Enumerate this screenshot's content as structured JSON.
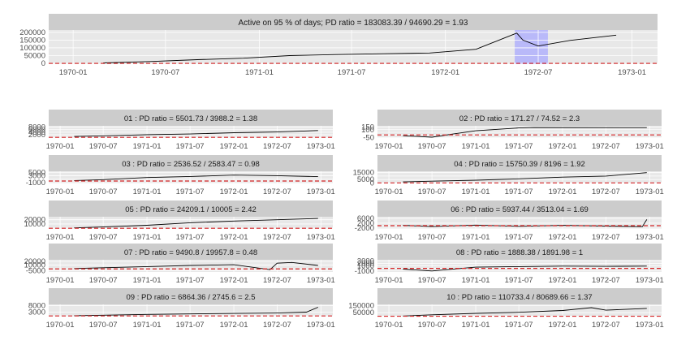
{
  "chart_data": [
    {
      "type": "line",
      "title": "Active on 95 % of days; PD ratio =  183083.39 / 94690.29 = 1.93",
      "x_ticks": [
        "1970-01",
        "1970-07",
        "1971-01",
        "1971-07",
        "1972-01",
        "1972-07",
        "1973-01"
      ],
      "y_ticks": [
        0,
        50000,
        100000,
        150000,
        200000
      ],
      "y_tick_labels": [
        "0",
        "50000",
        "100000",
        "150000",
        "200000"
      ],
      "ylim": [
        -5000,
        215000
      ],
      "reference_line": 0,
      "highlight_range": [
        "1972-05-16",
        "1972-07-20"
      ],
      "series": [
        {
          "x": [
            "1970-03-01",
            "1970-06-01",
            "1970-09-01",
            "1970-12-01",
            "1971-03-01",
            "1971-06-01",
            "1971-09-01",
            "1971-12-01",
            "1972-03-01",
            "1972-05-20",
            "1972-06-01",
            "1972-07-01",
            "1972-09-01",
            "1972-12-01"
          ],
          "y": [
            3000,
            12000,
            24000,
            33000,
            50000,
            57000,
            62000,
            67000,
            91000,
            195000,
            150000,
            112000,
            148000,
            182000
          ]
        }
      ]
    },
    {
      "type": "line",
      "title": "01 : PD ratio =  5501.73 / 3988.2 = 1.38",
      "x_ticks": [
        "1970-01",
        "1970-07",
        "1971-01",
        "1971-07",
        "1972-01",
        "1972-07",
        "1973-01"
      ],
      "y_ticks": [
        0,
        2000,
        4000,
        6000,
        8000
      ],
      "y_tick_labels": [
        "2000",
        "4000",
        "6000",
        "8000"
      ],
      "ylim": [
        -500,
        9000
      ],
      "reference_line": 0,
      "series": [
        {
          "x": [
            "1970-03-01",
            "1970-07-01",
            "1971-01-01",
            "1971-07-01",
            "1972-01-01",
            "1972-07-01",
            "1972-12-20"
          ],
          "y": [
            700,
            1200,
            2100,
            2600,
            3600,
            4200,
            5300
          ]
        }
      ]
    },
    {
      "type": "line",
      "title": "02 : PD ratio =  171.27 / 74.52 = 2.3",
      "x_ticks": [
        "1970-01",
        "1970-07",
        "1971-01",
        "1971-07",
        "1972-01",
        "1972-07",
        "1973-01"
      ],
      "y_ticks": [
        -50,
        0,
        50,
        100,
        150
      ],
      "y_tick_labels": [
        "-50",
        "100",
        "150"
      ],
      "ylim": [
        -60,
        175
      ],
      "reference_line": 0,
      "series": [
        {
          "x": [
            "1970-03-01",
            "1970-07-01",
            "1970-10-01",
            "1971-01-01",
            "1971-07-01",
            "1971-09-01",
            "1972-12-20"
          ],
          "y": [
            -15,
            -45,
            20,
            80,
            135,
            142,
            140
          ]
        }
      ]
    },
    {
      "type": "line",
      "title": "03 : PD ratio =  2536.52 / 2583.47 = 0.98",
      "x_ticks": [
        "1970-01",
        "1970-07",
        "1971-01",
        "1971-07",
        "1972-01",
        "1972-07",
        "1973-01"
      ],
      "y_ticks": [
        -1000,
        0,
        1000,
        3000,
        5000
      ],
      "y_tick_labels": [
        "-1000",
        "3000",
        "5000"
      ],
      "ylim": [
        -1400,
        5600
      ],
      "reference_line": 0,
      "series": [
        {
          "x": [
            "1970-03-01",
            "1970-07-01",
            "1971-01-01",
            "1971-07-01",
            "1972-01-01",
            "1972-07-01",
            "1972-12-20"
          ],
          "y": [
            300,
            800,
            2000,
            2600,
            3400,
            3100,
            2500
          ]
        }
      ]
    },
    {
      "type": "line",
      "title": "04 : PD ratio =  15750.39 / 8196 = 1.92",
      "x_ticks": [
        "1970-01",
        "1970-07",
        "1971-01",
        "1971-07",
        "1972-01",
        "1972-07",
        "1973-01"
      ],
      "y_ticks": [
        0,
        5000,
        10000,
        15000
      ],
      "y_tick_labels": [
        "0",
        "5000",
        "15000"
      ],
      "ylim": [
        -800,
        17000
      ],
      "reference_line": 0,
      "series": [
        {
          "x": [
            "1970-03-01",
            "1970-07-01",
            "1971-01-01",
            "1971-07-01",
            "1972-01-01",
            "1972-07-01",
            "1972-12-20"
          ],
          "y": [
            1500,
            2500,
            4000,
            6000,
            8500,
            10000,
            15000
          ]
        }
      ]
    },
    {
      "type": "line",
      "title": "05 : PD ratio =  24209.1 / 10005 = 2.42",
      "x_ticks": [
        "1970-01",
        "1970-07",
        "1971-01",
        "1971-07",
        "1972-01",
        "1972-07",
        "1973-01"
      ],
      "y_ticks": [
        0,
        10000,
        20000
      ],
      "y_tick_labels": [
        "10000",
        "20000"
      ],
      "ylim": [
        -1500,
        27000
      ],
      "reference_line": 0,
      "series": [
        {
          "x": [
            "1970-03-01",
            "1970-07-01",
            "1971-01-01",
            "1971-07-01",
            "1972-01-01",
            "1972-07-01",
            "1972-12-20"
          ],
          "y": [
            1000,
            3000,
            7000,
            13000,
            17000,
            20000,
            23000
          ]
        }
      ]
    },
    {
      "type": "line",
      "title": "06 : PD ratio =  5937.44 / 3513.04 = 1.69",
      "x_ticks": [
        "1970-01",
        "1970-07",
        "1971-01",
        "1971-07",
        "1972-01",
        "1972-07",
        "1973-01"
      ],
      "y_ticks": [
        -2000,
        0,
        2000,
        6000
      ],
      "y_tick_labels": [
        "-2000",
        "2000",
        "6000"
      ],
      "ylim": [
        -2600,
        7200
      ],
      "reference_line": 0,
      "series": [
        {
          "x": [
            "1970-03-01",
            "1970-07-01",
            "1971-01-01",
            "1971-07-01",
            "1972-01-01",
            "1972-07-01",
            "1972-12-01",
            "1972-12-20"
          ],
          "y": [
            300,
            -700,
            500,
            -500,
            300,
            -300,
            -800,
            5000
          ]
        }
      ]
    },
    {
      "type": "line",
      "title": "07 : PD ratio =  9490.8 / 19957.8 = 0.48",
      "x_ticks": [
        "1970-01",
        "1970-07",
        "1971-01",
        "1971-07",
        "1972-01",
        "1972-07",
        "1973-01"
      ],
      "y_ticks": [
        -5000,
        0,
        10000,
        20000
      ],
      "y_tick_labels": [
        "-5000",
        "10000",
        "20000"
      ],
      "ylim": [
        -8000,
        24000
      ],
      "reference_line": 0,
      "series": [
        {
          "x": [
            "1970-03-01",
            "1970-07-01",
            "1971-01-01",
            "1971-07-01",
            "1972-01-01",
            "1972-06-01",
            "1972-07-01",
            "1972-09-01",
            "1972-12-20"
          ],
          "y": [
            1000,
            3000,
            6000,
            9000,
            11000,
            -2000,
            15000,
            17000,
            9000
          ]
        }
      ]
    },
    {
      "type": "line",
      "title": "08 : PD ratio =  1888.38 / 1891.98 = 1",
      "x_ticks": [
        "1970-01",
        "1970-07",
        "1971-01",
        "1971-07",
        "1972-01",
        "1972-07",
        "1973-01"
      ],
      "y_ticks": [
        -1000,
        0,
        1000,
        2000,
        3000
      ],
      "y_tick_labels": [
        "-1000",
        "1000",
        "2000",
        "3000"
      ],
      "ylim": [
        -1400,
        3400
      ],
      "reference_line": 0,
      "series": [
        {
          "x": [
            "1970-03-01",
            "1970-07-01",
            "1971-01-01",
            "1971-07-01",
            "1972-01-01",
            "1972-07-01",
            "1972-12-20"
          ],
          "y": [
            -300,
            -1000,
            500,
            700,
            900,
            800,
            900
          ]
        }
      ]
    },
    {
      "type": "line",
      "title": "09 : PD ratio =  6864.36 / 2745.6 = 2.5",
      "x_ticks": [
        "1970-01",
        "1970-07",
        "1971-01",
        "1971-07",
        "1972-01",
        "1972-07",
        "1973-01"
      ],
      "y_ticks": [
        0,
        3000,
        8000
      ],
      "y_tick_labels": [
        "3000",
        "8000"
      ],
      "ylim": [
        -500,
        9000
      ],
      "reference_line": 0,
      "series": [
        {
          "x": [
            "1970-03-01",
            "1970-07-01",
            "1971-01-01",
            "1971-07-01",
            "1972-01-01",
            "1972-07-01",
            "1972-11-01",
            "1972-12-20"
          ],
          "y": [
            200,
            600,
            1200,
            1600,
            2000,
            2300,
            3000,
            6800
          ]
        }
      ]
    },
    {
      "type": "line",
      "title": "10 : PD ratio =  110733.4 / 80689.66 = 1.37",
      "x_ticks": [
        "1970-01",
        "1970-07",
        "1971-01",
        "1971-07",
        "1972-01",
        "1972-07",
        "1973-01"
      ],
      "y_ticks": [
        0,
        50000,
        150000
      ],
      "y_tick_labels": [
        "50000",
        "150000"
      ],
      "ylim": [
        -5000,
        165000
      ],
      "reference_line": 0,
      "series": [
        {
          "x": [
            "1970-03-01",
            "1970-07-01",
            "1971-01-01",
            "1971-07-01",
            "1972-01-01",
            "1972-05-01",
            "1972-07-01",
            "1972-12-20"
          ],
          "y": [
            3000,
            20000,
            40000,
            55000,
            80000,
            120000,
            85000,
            110000
          ]
        }
      ]
    }
  ]
}
